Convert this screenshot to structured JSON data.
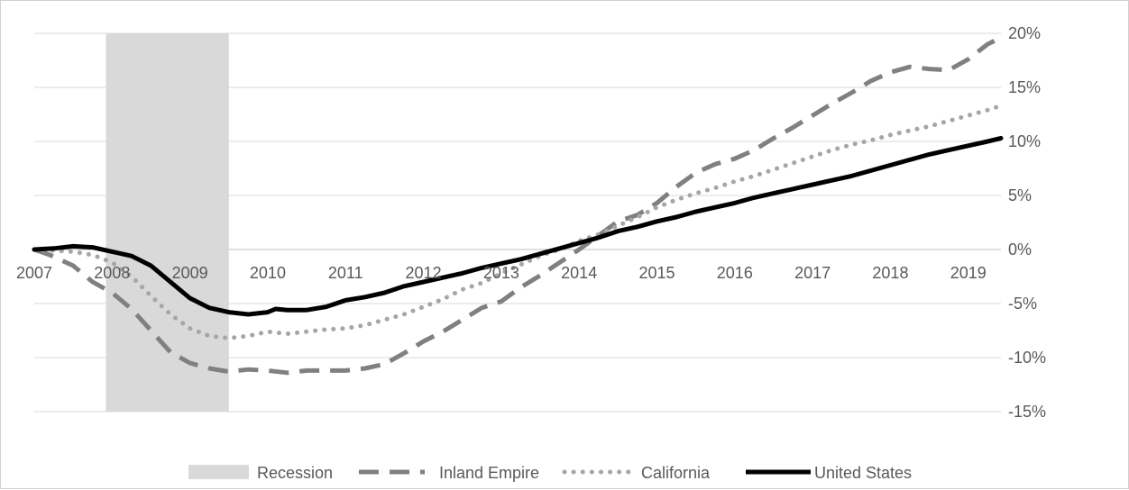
{
  "chart_data": {
    "type": "line",
    "title": "",
    "xlabel": "",
    "ylabel": "",
    "x_ticks": [
      "2007",
      "2008",
      "2009",
      "2010",
      "2011",
      "2012",
      "2013",
      "2014",
      "2015",
      "2016",
      "2017",
      "2018",
      "2019"
    ],
    "y_ticks": [
      "20%",
      "15%",
      "10%",
      "5%",
      "0%",
      "-5%",
      "-10%",
      "-15%"
    ],
    "y_tick_values": [
      20,
      15,
      10,
      5,
      0,
      -5,
      -10,
      -15
    ],
    "xlim": [
      2007.0,
      2019.42
    ],
    "ylim": [
      -15,
      20
    ],
    "grid": "horizontal",
    "y_axis_side": "right",
    "legend_position": "bottom",
    "recession": {
      "label": "Recession",
      "start": 2007.92,
      "end": 2009.5,
      "color": "#d9d9d9"
    },
    "series": [
      {
        "name": "Inland Empire",
        "style": "dashed",
        "color": "#808080",
        "points": [
          [
            2007.0,
            0
          ],
          [
            2007.2,
            -0.5
          ],
          [
            2007.5,
            -1.5
          ],
          [
            2007.75,
            -3
          ],
          [
            2008.0,
            -4
          ],
          [
            2008.25,
            -5.5
          ],
          [
            2008.5,
            -7.5
          ],
          [
            2008.75,
            -9.5
          ],
          [
            2009.0,
            -10.5
          ],
          [
            2009.25,
            -11
          ],
          [
            2009.5,
            -11.3
          ],
          [
            2009.75,
            -11.1
          ],
          [
            2010.0,
            -11.2
          ],
          [
            2010.25,
            -11.4
          ],
          [
            2010.5,
            -11.2
          ],
          [
            2010.75,
            -11.2
          ],
          [
            2011.0,
            -11.2
          ],
          [
            2011.25,
            -11
          ],
          [
            2011.5,
            -10.6
          ],
          [
            2011.75,
            -9.6
          ],
          [
            2012.0,
            -8.5
          ],
          [
            2012.25,
            -7.6
          ],
          [
            2012.5,
            -6.5
          ],
          [
            2012.75,
            -5.4
          ],
          [
            2013.0,
            -4.8
          ],
          [
            2013.25,
            -3.5
          ],
          [
            2013.5,
            -2.4
          ],
          [
            2013.75,
            -1.2
          ],
          [
            2014.0,
            0
          ],
          [
            2014.25,
            1.3
          ],
          [
            2014.5,
            2.6
          ],
          [
            2014.75,
            3.2
          ],
          [
            2015.0,
            4.3
          ],
          [
            2015.25,
            5.8
          ],
          [
            2015.5,
            7.1
          ],
          [
            2015.75,
            7.9
          ],
          [
            2016.0,
            8.4
          ],
          [
            2016.25,
            9.2
          ],
          [
            2016.5,
            10.3
          ],
          [
            2016.75,
            11.3
          ],
          [
            2017.0,
            12.4
          ],
          [
            2017.25,
            13.5
          ],
          [
            2017.5,
            14.5
          ],
          [
            2017.75,
            15.6
          ],
          [
            2018.0,
            16.4
          ],
          [
            2018.25,
            16.9
          ],
          [
            2018.5,
            16.7
          ],
          [
            2018.75,
            16.6
          ],
          [
            2019.0,
            17.6
          ],
          [
            2019.25,
            19
          ],
          [
            2019.42,
            19.6
          ]
        ]
      },
      {
        "name": "California",
        "style": "dotted",
        "color": "#a6a6a6",
        "points": [
          [
            2007.0,
            0
          ],
          [
            2007.25,
            -0.1
          ],
          [
            2007.5,
            -0.2
          ],
          [
            2007.75,
            -0.5
          ],
          [
            2008.0,
            -1.2
          ],
          [
            2008.25,
            -2.5
          ],
          [
            2008.5,
            -4.3
          ],
          [
            2008.75,
            -6
          ],
          [
            2009.0,
            -7.3
          ],
          [
            2009.25,
            -8
          ],
          [
            2009.5,
            -8.2
          ],
          [
            2009.75,
            -8
          ],
          [
            2010.0,
            -7.6
          ],
          [
            2010.25,
            -7.8
          ],
          [
            2010.5,
            -7.6
          ],
          [
            2010.75,
            -7.4
          ],
          [
            2011.0,
            -7.3
          ],
          [
            2011.25,
            -7
          ],
          [
            2011.5,
            -6.5
          ],
          [
            2011.75,
            -6
          ],
          [
            2012.0,
            -5.3
          ],
          [
            2012.25,
            -4.6
          ],
          [
            2012.5,
            -3.7
          ],
          [
            2012.75,
            -3.1
          ],
          [
            2013.0,
            -2.2
          ],
          [
            2013.25,
            -1.4
          ],
          [
            2013.5,
            -0.6
          ],
          [
            2013.75,
            0
          ],
          [
            2014.0,
            0.8
          ],
          [
            2014.25,
            1.4
          ],
          [
            2014.5,
            2.2
          ],
          [
            2014.75,
            3
          ],
          [
            2015.0,
            3.9
          ],
          [
            2015.25,
            4.6
          ],
          [
            2015.5,
            5.2
          ],
          [
            2015.75,
            5.7
          ],
          [
            2016.0,
            6.3
          ],
          [
            2016.25,
            6.8
          ],
          [
            2016.5,
            7.4
          ],
          [
            2016.75,
            8
          ],
          [
            2017.0,
            8.6
          ],
          [
            2017.25,
            9.2
          ],
          [
            2017.5,
            9.7
          ],
          [
            2017.75,
            10.1
          ],
          [
            2018.0,
            10.6
          ],
          [
            2018.25,
            11
          ],
          [
            2018.5,
            11.4
          ],
          [
            2018.75,
            11.9
          ],
          [
            2019.0,
            12.4
          ],
          [
            2019.25,
            12.9
          ],
          [
            2019.42,
            13.3
          ]
        ]
      },
      {
        "name": "United States",
        "style": "solid",
        "color": "#000000",
        "points": [
          [
            2007.0,
            0
          ],
          [
            2007.25,
            0.1
          ],
          [
            2007.5,
            0.3
          ],
          [
            2007.75,
            0.2
          ],
          [
            2008.0,
            -0.2
          ],
          [
            2008.25,
            -0.6
          ],
          [
            2008.5,
            -1.5
          ],
          [
            2008.75,
            -3
          ],
          [
            2009.0,
            -4.5
          ],
          [
            2009.25,
            -5.4
          ],
          [
            2009.5,
            -5.8
          ],
          [
            2009.75,
            -6
          ],
          [
            2010.0,
            -5.8
          ],
          [
            2010.1,
            -5.5
          ],
          [
            2010.25,
            -5.6
          ],
          [
            2010.5,
            -5.6
          ],
          [
            2010.75,
            -5.3
          ],
          [
            2011.0,
            -4.7
          ],
          [
            2011.25,
            -4.4
          ],
          [
            2011.5,
            -4
          ],
          [
            2011.75,
            -3.4
          ],
          [
            2012.0,
            -3
          ],
          [
            2012.25,
            -2.6
          ],
          [
            2012.5,
            -2.2
          ],
          [
            2012.75,
            -1.7
          ],
          [
            2013.0,
            -1.3
          ],
          [
            2013.25,
            -0.9
          ],
          [
            2013.5,
            -0.4
          ],
          [
            2013.75,
            0.1
          ],
          [
            2014.0,
            0.6
          ],
          [
            2014.25,
            1.1
          ],
          [
            2014.5,
            1.7
          ],
          [
            2014.75,
            2.1
          ],
          [
            2015.0,
            2.6
          ],
          [
            2015.25,
            3
          ],
          [
            2015.5,
            3.5
          ],
          [
            2015.75,
            3.9
          ],
          [
            2016.0,
            4.3
          ],
          [
            2016.25,
            4.8
          ],
          [
            2016.5,
            5.2
          ],
          [
            2016.75,
            5.6
          ],
          [
            2017.0,
            6
          ],
          [
            2017.25,
            6.4
          ],
          [
            2017.5,
            6.8
          ],
          [
            2017.75,
            7.3
          ],
          [
            2018.0,
            7.8
          ],
          [
            2018.25,
            8.3
          ],
          [
            2018.5,
            8.8
          ],
          [
            2018.75,
            9.2
          ],
          [
            2019.0,
            9.6
          ],
          [
            2019.25,
            10
          ],
          [
            2019.42,
            10.3
          ]
        ]
      }
    ]
  }
}
